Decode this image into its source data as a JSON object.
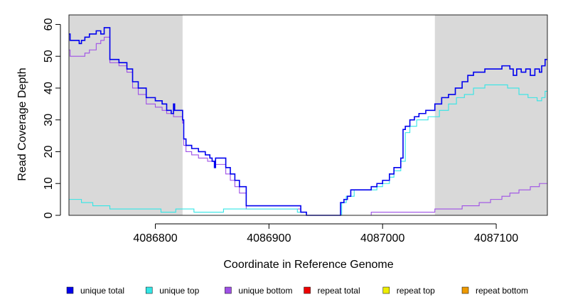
{
  "chart_data": {
    "type": "line",
    "xlabel": "Coordinate in Reference Genome",
    "ylabel": "Read Coverage Depth",
    "xlim": [
      4086724,
      4087145
    ],
    "ylim": [
      0,
      63
    ],
    "x_ticks": [
      4086800,
      4086900,
      4087000,
      4087100
    ],
    "x_tick_labels": [
      "4086800",
      "4086900",
      "4087000",
      "4087100"
    ],
    "y_ticks": [
      0,
      10,
      20,
      30,
      40,
      50,
      60
    ],
    "y_tick_labels": [
      "0",
      "10",
      "20",
      "30",
      "40",
      "50",
      "60"
    ],
    "shaded_regions": [
      {
        "x_start": 4086724,
        "x_end": 4086824,
        "color": "#d9d9d9"
      },
      {
        "x_start": 4087046,
        "x_end": 4087145,
        "color": "#d9d9d9"
      }
    ],
    "series": [
      {
        "name": "unique total",
        "color": "#0000ee",
        "points": [
          [
            4086724,
            57
          ],
          [
            4086725,
            55
          ],
          [
            4086733,
            54
          ],
          [
            4086735,
            55
          ],
          [
            4086738,
            56
          ],
          [
            4086742,
            57
          ],
          [
            4086748,
            58
          ],
          [
            4086752,
            57
          ],
          [
            4086755,
            59
          ],
          [
            4086760,
            49
          ],
          [
            4086768,
            48
          ],
          [
            4086775,
            46
          ],
          [
            4086780,
            42
          ],
          [
            4086785,
            40
          ],
          [
            4086792,
            37
          ],
          [
            4086800,
            36
          ],
          [
            4086806,
            35
          ],
          [
            4086810,
            33
          ],
          [
            4086814,
            32
          ],
          [
            4086816,
            35
          ],
          [
            4086817,
            33
          ],
          [
            4086824,
            30
          ],
          [
            4086825,
            24
          ],
          [
            4086827,
            22
          ],
          [
            4086832,
            21
          ],
          [
            4086838,
            20
          ],
          [
            4086844,
            19
          ],
          [
            4086848,
            18
          ],
          [
            4086850,
            17
          ],
          [
            4086852,
            15
          ],
          [
            4086853,
            18
          ],
          [
            4086862,
            15
          ],
          [
            4086866,
            13
          ],
          [
            4086870,
            11
          ],
          [
            4086874,
            9
          ],
          [
            4086880,
            3
          ],
          [
            4086890,
            3
          ],
          [
            4086905,
            3
          ],
          [
            4086924,
            3
          ],
          [
            4086928,
            1
          ],
          [
            4086933,
            0
          ],
          [
            4086961,
            0
          ],
          [
            4086963,
            4
          ],
          [
            4086966,
            5
          ],
          [
            4086969,
            6
          ],
          [
            4086972,
            8
          ],
          [
            4086980,
            8
          ],
          [
            4086990,
            9
          ],
          [
            4086995,
            10
          ],
          [
            4087000,
            11
          ],
          [
            4087006,
            13
          ],
          [
            4087010,
            15
          ],
          [
            4087016,
            18
          ],
          [
            4087018,
            27
          ],
          [
            4087020,
            28
          ],
          [
            4087024,
            30
          ],
          [
            4087028,
            31
          ],
          [
            4087032,
            32
          ],
          [
            4087038,
            33
          ],
          [
            4087046,
            35
          ],
          [
            4087052,
            37
          ],
          [
            4087058,
            38
          ],
          [
            4087064,
            40
          ],
          [
            4087070,
            42
          ],
          [
            4087075,
            44
          ],
          [
            4087080,
            45
          ],
          [
            4087090,
            46
          ],
          [
            4087105,
            47
          ],
          [
            4087112,
            46
          ],
          [
            4087115,
            44
          ],
          [
            4087118,
            46
          ],
          [
            4087122,
            45
          ],
          [
            4087126,
            46
          ],
          [
            4087130,
            44
          ],
          [
            4087134,
            46
          ],
          [
            4087138,
            45
          ],
          [
            4087140,
            47
          ],
          [
            4087143,
            49
          ],
          [
            4087145,
            49
          ]
        ]
      },
      {
        "name": "unique top",
        "color": "#33e6e6",
        "points": [
          [
            4086724,
            5
          ],
          [
            4086735,
            4
          ],
          [
            4086745,
            3
          ],
          [
            4086755,
            3
          ],
          [
            4086760,
            2
          ],
          [
            4086788,
            2
          ],
          [
            4086805,
            1
          ],
          [
            4086815,
            1
          ],
          [
            4086818,
            2
          ],
          [
            4086834,
            1
          ],
          [
            4086860,
            2
          ],
          [
            4086895,
            2
          ],
          [
            4086925,
            1
          ],
          [
            4086933,
            0
          ],
          [
            4086961,
            0
          ],
          [
            4086964,
            4
          ],
          [
            4086968,
            6
          ],
          [
            4086975,
            8
          ],
          [
            4086990,
            8
          ],
          [
            4086995,
            9
          ],
          [
            4087000,
            10
          ],
          [
            4087006,
            12
          ],
          [
            4087010,
            14
          ],
          [
            4087016,
            17
          ],
          [
            4087020,
            26
          ],
          [
            4087024,
            28
          ],
          [
            4087030,
            30
          ],
          [
            4087040,
            31
          ],
          [
            4087050,
            33
          ],
          [
            4087058,
            35
          ],
          [
            4087065,
            37
          ],
          [
            4087072,
            38
          ],
          [
            4087080,
            40
          ],
          [
            4087090,
            41
          ],
          [
            4087110,
            40
          ],
          [
            4087120,
            38
          ],
          [
            4087128,
            37
          ],
          [
            4087136,
            36
          ],
          [
            4087140,
            37
          ],
          [
            4087143,
            39
          ],
          [
            4087145,
            39
          ]
        ]
      },
      {
        "name": "unique bottom",
        "color": "#9f50e6",
        "points": [
          [
            4086724,
            52
          ],
          [
            4086725,
            50
          ],
          [
            4086738,
            51
          ],
          [
            4086742,
            52
          ],
          [
            4086748,
            54
          ],
          [
            4086752,
            55
          ],
          [
            4086755,
            56
          ],
          [
            4086760,
            48
          ],
          [
            4086768,
            47
          ],
          [
            4086775,
            45
          ],
          [
            4086780,
            40
          ],
          [
            4086785,
            38
          ],
          [
            4086792,
            35
          ],
          [
            4086800,
            34
          ],
          [
            4086806,
            33
          ],
          [
            4086810,
            32
          ],
          [
            4086816,
            31
          ],
          [
            4086824,
            29
          ],
          [
            4086825,
            22
          ],
          [
            4086827,
            20
          ],
          [
            4086832,
            19
          ],
          [
            4086838,
            18
          ],
          [
            4086846,
            17
          ],
          [
            4086852,
            16
          ],
          [
            4086862,
            13
          ],
          [
            4086866,
            11
          ],
          [
            4086870,
            9
          ],
          [
            4086874,
            7
          ],
          [
            4086880,
            2
          ],
          [
            4086890,
            2
          ],
          [
            4086905,
            2
          ],
          [
            4086924,
            2
          ],
          [
            4086928,
            1
          ],
          [
            4086933,
            0
          ],
          [
            4086985,
            0
          ],
          [
            4086990,
            1
          ],
          [
            4087000,
            1
          ],
          [
            4087046,
            2
          ],
          [
            4087070,
            3
          ],
          [
            4087085,
            4
          ],
          [
            4087095,
            5
          ],
          [
            4087105,
            6
          ],
          [
            4087112,
            7
          ],
          [
            4087120,
            8
          ],
          [
            4087130,
            9
          ],
          [
            4087138,
            10
          ],
          [
            4087145,
            10
          ]
        ]
      },
      {
        "name": "repeat total",
        "color": "#ee0000",
        "points": [
          [
            4086724,
            0
          ],
          [
            4087145,
            0
          ]
        ]
      },
      {
        "name": "repeat top",
        "color": "#eeee00",
        "points": [
          [
            4086724,
            0
          ],
          [
            4087145,
            0
          ]
        ]
      },
      {
        "name": "repeat bottom",
        "color": "#ee9a00",
        "points": [
          [
            4086724,
            0
          ],
          [
            4087145,
            0
          ]
        ]
      }
    ],
    "legend": {
      "placement": "bottom",
      "entries": [
        {
          "label": "unique total",
          "color": "#0000ee"
        },
        {
          "label": "unique top",
          "color": "#33e6e6"
        },
        {
          "label": "unique bottom",
          "color": "#9f50e6"
        },
        {
          "label": "repeat total",
          "color": "#ee0000"
        },
        {
          "label": "repeat top",
          "color": "#eeee00"
        },
        {
          "label": "repeat bottom",
          "color": "#ee9a00"
        }
      ]
    }
  }
}
